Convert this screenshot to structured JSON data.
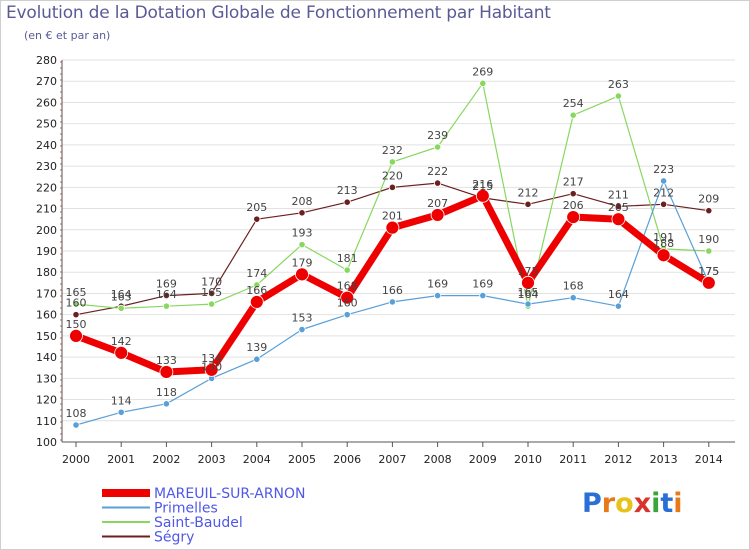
{
  "title": "Evolution de la Dotation Globale de Fonctionnement par Habitant",
  "subtitle": "(en € et par an)",
  "brand": {
    "text": "Proxiti",
    "letter_colors": [
      "#2a6fd6",
      "#e8791a",
      "#e8c21a",
      "#d9342b",
      "#3aa63a",
      "#2a6fd6",
      "#e8791a"
    ]
  },
  "chart_data": {
    "type": "line",
    "title": "Evolution de la Dotation Globale de Fonctionnement par Habitant",
    "ylabel": "(en € et par an)",
    "xlabel": "",
    "x": [
      "2000",
      "2001",
      "2002",
      "2003",
      "2004",
      "2005",
      "2006",
      "2007",
      "2008",
      "2009",
      "2010",
      "2011",
      "2012",
      "2013",
      "2014"
    ],
    "ylim": [
      100,
      280
    ],
    "yticks": [
      100,
      110,
      120,
      130,
      140,
      150,
      160,
      170,
      180,
      190,
      200,
      210,
      220,
      230,
      240,
      250,
      260,
      270,
      280
    ],
    "grid": "horizontal",
    "legend": "bottom-left",
    "series": [
      {
        "name": "Ségry",
        "color": "#6b1f1f",
        "values": [
          160,
          164,
          169,
          170,
          205,
          208,
          213,
          220,
          222,
          215,
          212,
          217,
          211,
          212,
          209
        ]
      },
      {
        "name": "Saint-Baudel",
        "color": "#88d860",
        "values": [
          165,
          163,
          164,
          165,
          174,
          193,
          181,
          232,
          239,
          269,
          164,
          254,
          263,
          191,
          190
        ]
      },
      {
        "name": "Primelles",
        "color": "#5aa0d8",
        "values": [
          108,
          114,
          118,
          130,
          139,
          153,
          160,
          166,
          169,
          169,
          165,
          168,
          164,
          223,
          175
        ]
      },
      {
        "name": "MAREUIL-SUR-ARNON",
        "color": "#ee0000",
        "values": [
          150,
          142,
          133,
          134,
          166,
          179,
          168,
          201,
          207,
          216,
          175,
          206,
          205,
          188,
          175
        ]
      }
    ]
  }
}
